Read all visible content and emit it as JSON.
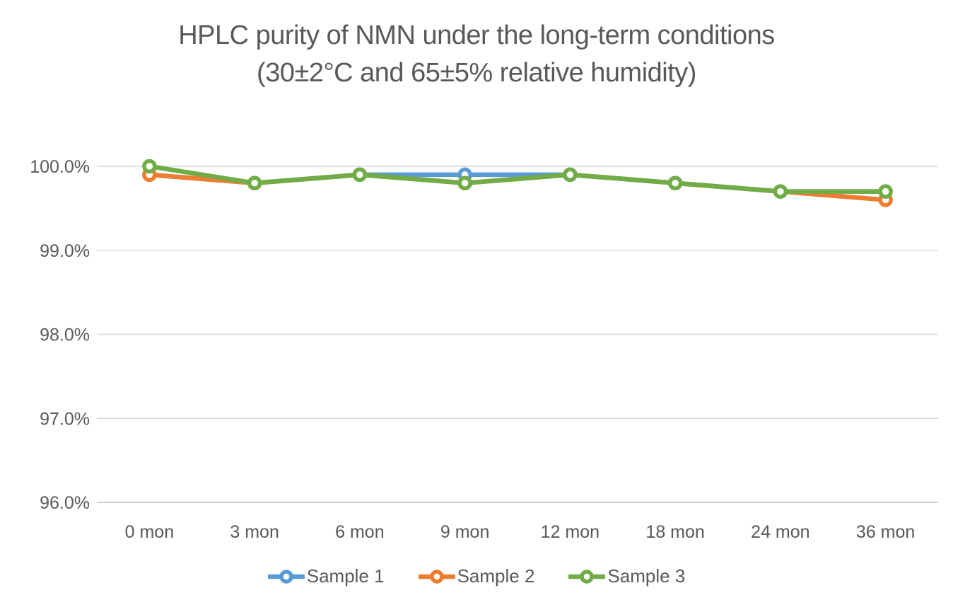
{
  "chart": {
    "title_lines": [
      "HPLC purity of NMN under the long-term conditions",
      "(30±2°C and 65±5% relative humidity)"
    ]
  },
  "chart_data": {
    "type": "line",
    "title": "HPLC purity of NMN under the long-term conditions (30±2°C and 65±5% relative humidity)",
    "xlabel": "",
    "ylabel": "",
    "categories": [
      "0 mon",
      "3 mon",
      "6 mon",
      "9 mon",
      "12 mon",
      "18 mon",
      "24 mon",
      "36 mon"
    ],
    "series": [
      {
        "name": "Sample 1",
        "color": "#5B9BD5",
        "values": [
          99.9,
          99.8,
          99.9,
          99.9,
          99.9,
          99.8,
          99.7,
          99.7
        ]
      },
      {
        "name": "Sample 2",
        "color": "#ED7D31",
        "values": [
          99.9,
          99.8,
          99.9,
          99.8,
          99.9,
          99.8,
          99.7,
          99.6
        ]
      },
      {
        "name": "Sample 3",
        "color": "#70AD47",
        "values": [
          100.0,
          99.8,
          99.9,
          99.8,
          99.9,
          99.8,
          99.7,
          99.7
        ]
      }
    ],
    "ylim": [
      96.0,
      100.0
    ],
    "ytick_step": 1.0,
    "ytick_labels": [
      "100.0%",
      "99.0%",
      "98.0%",
      "97.0%",
      "96.0%"
    ],
    "grid": true,
    "legend_position": "bottom",
    "marker_style": "open-circle",
    "colors": {
      "gridline": "#D9D9D9",
      "axis_line": "#BFBFBF",
      "text": "#595959",
      "background": "#FFFFFF"
    }
  }
}
